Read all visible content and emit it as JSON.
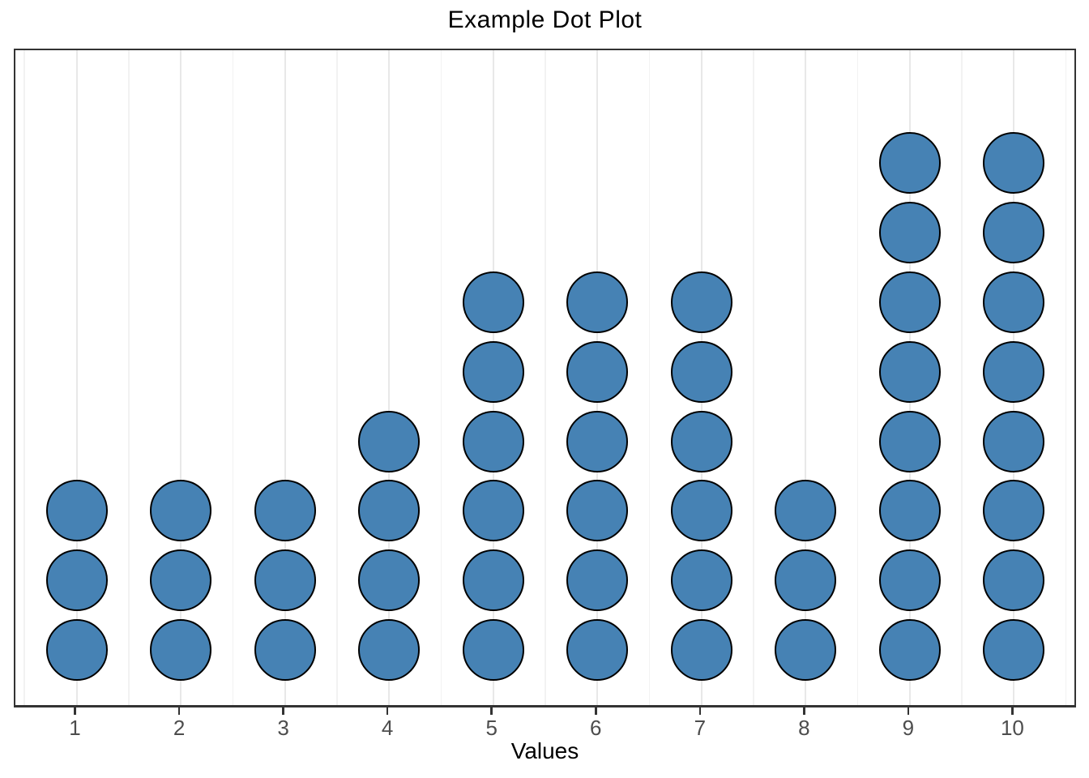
{
  "chart_data": {
    "type": "dotplot",
    "title": "Example Dot Plot",
    "xlabel": "Values",
    "ylabel": "",
    "x": [
      1,
      2,
      3,
      4,
      5,
      6,
      7,
      8,
      9,
      10
    ],
    "counts": [
      3,
      3,
      3,
      4,
      6,
      6,
      6,
      3,
      8,
      8
    ],
    "x_tick_labels": [
      "1",
      "2",
      "3",
      "4",
      "5",
      "6",
      "7",
      "8",
      "9",
      "10"
    ],
    "xlim": [
      0.4,
      10.6
    ],
    "total_dots": 50,
    "legend_position": "none",
    "grid": {
      "vertical_major": true,
      "vertical_minor": true,
      "horizontal": false
    },
    "colors": {
      "dot_fill": "#4682B4",
      "dot_stroke": "#000000",
      "grid_major": "#e8e8e8",
      "grid_minor": "#f2f2f2",
      "panel_border": "#333333",
      "tick_mark": "#333333",
      "tick_label": "#4d4d4d",
      "title_text": "#000000",
      "axis_title_text": "#000000",
      "background": "#ffffff"
    }
  }
}
